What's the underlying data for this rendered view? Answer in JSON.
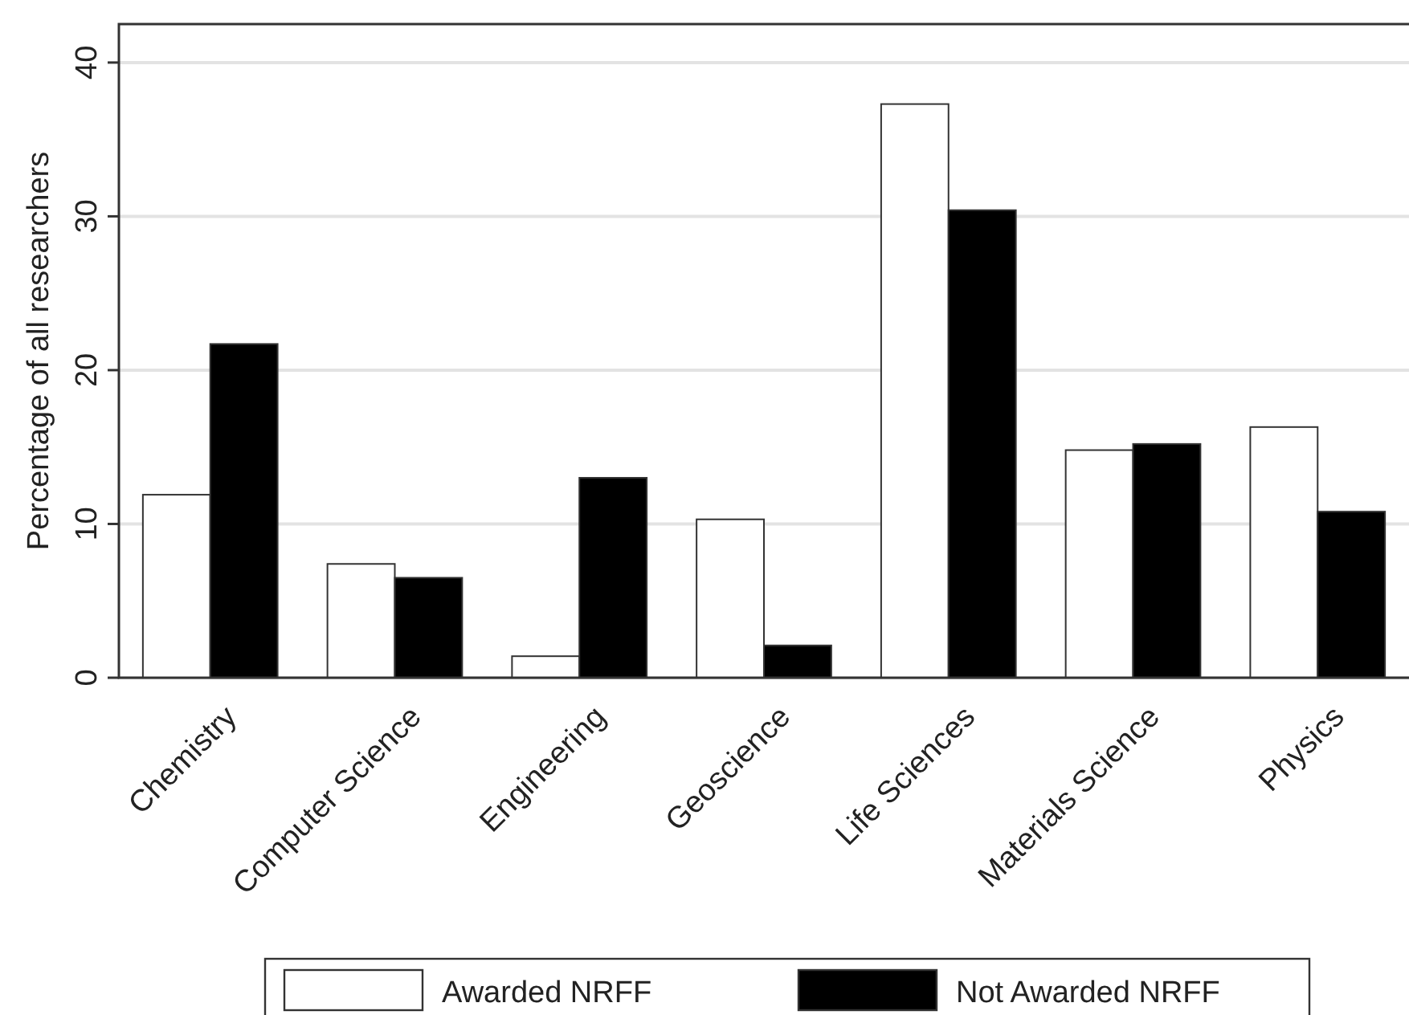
{
  "chart_data": {
    "type": "bar",
    "ylabel": "Percentage of all researchers",
    "categories": [
      "Chemistry",
      "Computer Science",
      "Engineering",
      "Geoscience",
      "Life Sciences",
      "Materials Science",
      "Physics"
    ],
    "series": [
      {
        "name": "Awarded NRFF",
        "color": "#ffffff",
        "values": [
          11.9,
          7.4,
          1.4,
          10.3,
          37.3,
          14.8,
          16.3
        ]
      },
      {
        "name": "Not Awarded NRFF",
        "color": "#000000",
        "values": [
          21.7,
          6.5,
          13.0,
          2.1,
          30.4,
          15.2,
          10.8
        ]
      }
    ],
    "ylim": [
      0,
      42.5
    ],
    "yticks": [
      0,
      10,
      20,
      30,
      40
    ],
    "grid": "y",
    "legend": "bottom"
  }
}
